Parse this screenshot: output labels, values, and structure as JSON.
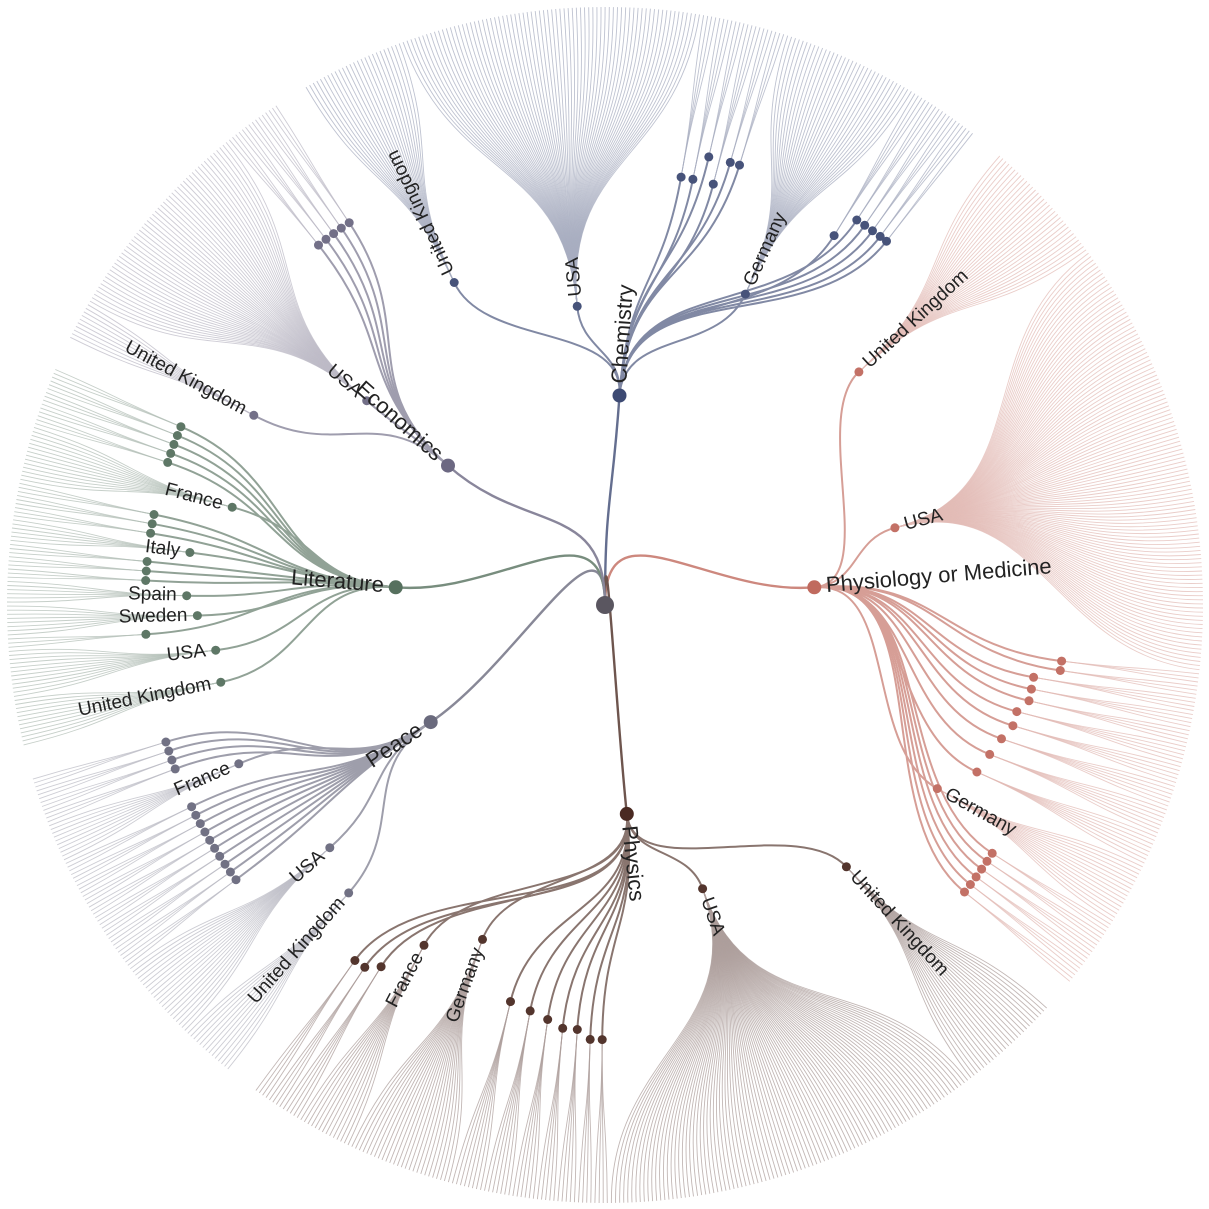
{
  "tree": {
    "categories": [
      {
        "name": "Chemistry",
        "color": "#3d4a73",
        "countries": [
          {
            "name": "United Kingdom",
            "leaves": 26
          },
          {
            "name": "USA",
            "leaves": 74
          },
          {
            "name": "",
            "leaves": 4
          },
          {
            "name": "",
            "leaves": 4
          },
          {
            "name": "",
            "leaves": 3
          },
          {
            "name": "",
            "leaves": 4
          },
          {
            "name": "",
            "leaves": 3
          },
          {
            "name": "",
            "leaves": 3
          },
          {
            "name": "Germany",
            "leaves": 34
          },
          {
            "name": "",
            "leaves": 4
          },
          {
            "name": "",
            "leaves": 3
          },
          {
            "name": "",
            "leaves": 3
          },
          {
            "name": "",
            "leaves": 3
          },
          {
            "name": "",
            "leaves": 3
          },
          {
            "name": "",
            "leaves": 2
          }
        ]
      },
      {
        "name": "Physiology or Medicine",
        "color": "#c06a5e",
        "countries": [
          {
            "name": "United Kingdom",
            "leaves": 32
          },
          {
            "name": "USA",
            "leaves": 108
          },
          {
            "name": "",
            "leaves": 3
          },
          {
            "name": "",
            "leaves": 3
          },
          {
            "name": "",
            "leaves": 4
          },
          {
            "name": "",
            "leaves": 4
          },
          {
            "name": "",
            "leaves": 4
          },
          {
            "name": "",
            "leaves": 5
          },
          {
            "name": "",
            "leaves": 5
          },
          {
            "name": "",
            "leaves": 6
          },
          {
            "name": "",
            "leaves": 7
          },
          {
            "name": "",
            "leaves": 8
          },
          {
            "name": "Germany",
            "leaves": 16
          },
          {
            "name": "",
            "leaves": 3
          },
          {
            "name": "",
            "leaves": 3
          },
          {
            "name": "",
            "leaves": 3
          },
          {
            "name": "",
            "leaves": 3
          },
          {
            "name": "",
            "leaves": 3
          },
          {
            "name": "",
            "leaves": 3
          }
        ]
      },
      {
        "name": "Physics",
        "color": "#4a2a22",
        "countries": [
          {
            "name": "United Kingdom",
            "leaves": 26
          },
          {
            "name": "USA",
            "leaves": 94
          },
          {
            "name": "",
            "leaves": 4
          },
          {
            "name": "",
            "leaves": 4
          },
          {
            "name": "",
            "leaves": 5
          },
          {
            "name": "",
            "leaves": 5
          },
          {
            "name": "",
            "leaves": 6
          },
          {
            "name": "",
            "leaves": 7
          },
          {
            "name": "",
            "leaves": 8
          },
          {
            "name": "Germany",
            "leaves": 26
          },
          {
            "name": "France",
            "leaves": 14
          },
          {
            "name": "",
            "leaves": 5
          },
          {
            "name": "",
            "leaves": 4
          },
          {
            "name": "",
            "leaves": 4
          }
        ]
      },
      {
        "name": "Peace",
        "color": "#6a6a7d",
        "countries": [
          {
            "name": "United Kingdom",
            "leaves": 14
          },
          {
            "name": "USA",
            "leaves": 21
          },
          {
            "name": "",
            "leaves": 3
          },
          {
            "name": "",
            "leaves": 3
          },
          {
            "name": "",
            "leaves": 3
          },
          {
            "name": "",
            "leaves": 3
          },
          {
            "name": "",
            "leaves": 3
          },
          {
            "name": "",
            "leaves": 3
          },
          {
            "name": "",
            "leaves": 3
          },
          {
            "name": "",
            "leaves": 3
          },
          {
            "name": "",
            "leaves": 3
          },
          {
            "name": "",
            "leaves": 3
          },
          {
            "name": "France",
            "leaves": 10
          },
          {
            "name": "",
            "leaves": 3
          },
          {
            "name": "",
            "leaves": 3
          },
          {
            "name": "",
            "leaves": 3
          },
          {
            "name": "",
            "leaves": 3
          }
        ]
      },
      {
        "name": "Literature",
        "color": "#56705e",
        "countries": [
          {
            "name": "United Kingdom",
            "leaves": 12
          },
          {
            "name": "USA",
            "leaves": 12
          },
          {
            "name": "",
            "leaves": 3
          },
          {
            "name": "Sweden",
            "leaves": 8
          },
          {
            "name": "Spain",
            "leaves": 6
          },
          {
            "name": "",
            "leaves": 3
          },
          {
            "name": "",
            "leaves": 3
          },
          {
            "name": "",
            "leaves": 3
          },
          {
            "name": "Italy",
            "leaves": 6
          },
          {
            "name": "",
            "leaves": 3
          },
          {
            "name": "",
            "leaves": 3
          },
          {
            "name": "",
            "leaves": 3
          },
          {
            "name": "France",
            "leaves": 14
          },
          {
            "name": "",
            "leaves": 3
          },
          {
            "name": "",
            "leaves": 3
          },
          {
            "name": "",
            "leaves": 3
          },
          {
            "name": "",
            "leaves": 3
          },
          {
            "name": "",
            "leaves": 3
          }
        ]
      },
      {
        "name": "Economics",
        "color": "#6c6882",
        "countries": [
          {
            "name": "United Kingdom",
            "leaves": 10
          },
          {
            "name": "USA",
            "leaves": 52
          },
          {
            "name": "",
            "leaves": 3
          },
          {
            "name": "",
            "leaves": 3
          },
          {
            "name": "",
            "leaves": 3
          },
          {
            "name": "",
            "leaves": 3
          },
          {
            "name": "",
            "leaves": 3
          }
        ]
      }
    ]
  }
}
